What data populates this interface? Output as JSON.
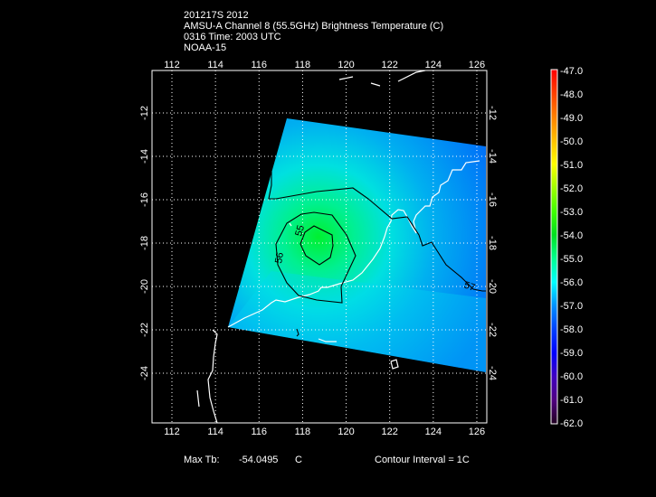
{
  "header": {
    "line1": "201217S 2012",
    "line2": "AMSU-A Channel 8 (55.5GHz) Brightness Temperature (C)",
    "line3": "0316 Time: 2003 UTC",
    "line4": "NOAA-15"
  },
  "map": {
    "lon_ticks": [
      "112",
      "114",
      "116",
      "118",
      "120",
      "122",
      "124",
      "126"
    ],
    "lat_ticks": [
      "-12",
      "-14",
      "-16",
      "-18",
      "-20",
      "-22",
      "-24"
    ],
    "contour_labels": [
      "55",
      "56",
      "57"
    ],
    "max_tb_center": {
      "lon": 119.0,
      "lat": -18.0
    }
  },
  "colorbar": {
    "labels": [
      "-47.0",
      "-48.0",
      "-49.0",
      "-50.0",
      "-51.0",
      "-52.0",
      "-53.0",
      "-54.0",
      "-55.0",
      "-56.0",
      "-57.0",
      "-58.0",
      "-59.0",
      "-60.0",
      "-61.0",
      "-62.0"
    ],
    "colors": [
      "#ff0000",
      "#ff4000",
      "#ff8000",
      "#ffc000",
      "#ffff00",
      "#a0ff00",
      "#40ff00",
      "#00e020",
      "#00ff90",
      "#00ffff",
      "#0090ff",
      "#0040ff",
      "#0000ff",
      "#4000c0",
      "#500080",
      "#200020"
    ]
  },
  "footer": {
    "max_label": "Max Tb:",
    "max_value": "-54.0495",
    "max_unit": "C",
    "contour_interval": "Contour Interval = 1C"
  }
}
